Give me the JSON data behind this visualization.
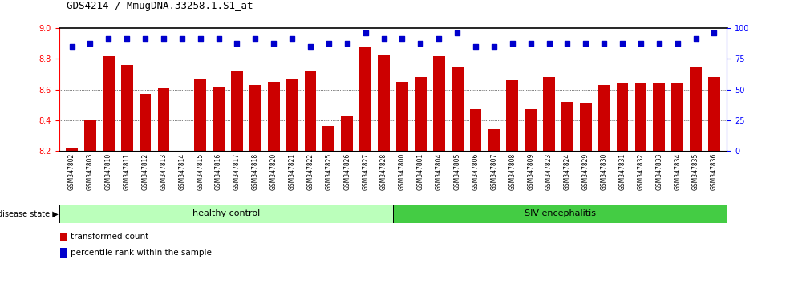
{
  "title": "GDS4214 / MmugDNA.33258.1.S1_at",
  "samples": [
    "GSM347802",
    "GSM347803",
    "GSM347810",
    "GSM347811",
    "GSM347812",
    "GSM347813",
    "GSM347814",
    "GSM347815",
    "GSM347816",
    "GSM347817",
    "GSM347818",
    "GSM347820",
    "GSM347821",
    "GSM347822",
    "GSM347825",
    "GSM347826",
    "GSM347827",
    "GSM347828",
    "GSM347800",
    "GSM347801",
    "GSM347804",
    "GSM347805",
    "GSM347806",
    "GSM347807",
    "GSM347808",
    "GSM347809",
    "GSM347823",
    "GSM347824",
    "GSM347829",
    "GSM347830",
    "GSM347831",
    "GSM347832",
    "GSM347833",
    "GSM347834",
    "GSM347835",
    "GSM347836"
  ],
  "bar_values": [
    8.22,
    8.4,
    8.82,
    8.76,
    8.57,
    8.61,
    8.2,
    8.67,
    8.62,
    8.72,
    8.63,
    8.65,
    8.67,
    8.72,
    8.36,
    8.43,
    8.88,
    8.83,
    8.65,
    8.68,
    8.82,
    8.75,
    8.47,
    8.34,
    8.66,
    8.47,
    8.68,
    8.52,
    8.51,
    8.63,
    8.64,
    8.64,
    8.64,
    8.64,
    8.75,
    8.68
  ],
  "percentile_values": [
    85,
    88,
    92,
    92,
    92,
    92,
    92,
    92,
    92,
    88,
    92,
    88,
    92,
    85,
    88,
    88,
    96,
    92,
    92,
    88,
    92,
    96,
    85,
    85,
    88,
    88,
    88,
    88,
    88,
    88,
    88,
    88,
    88,
    88,
    92,
    96
  ],
  "bar_color": "#cc0000",
  "dot_color": "#0000cc",
  "ylim_left": [
    8.2,
    9.0
  ],
  "ylim_right": [
    0,
    100
  ],
  "yticks_left": [
    8.2,
    8.4,
    8.6,
    8.8,
    9.0
  ],
  "yticks_right": [
    0,
    25,
    50,
    75,
    100
  ],
  "healthy_count": 18,
  "healthy_label": "healthy control",
  "siv_label": "SIV encephalitis",
  "disease_state_label": "disease state",
  "legend_bar_label": "transformed count",
  "legend_dot_label": "percentile rank within the sample",
  "bg_color": "#ffffff",
  "plot_bg": "#ffffff",
  "healthy_bg": "#bbffbb",
  "siv_bg": "#44cc44",
  "xtick_bg": "#dddddd"
}
